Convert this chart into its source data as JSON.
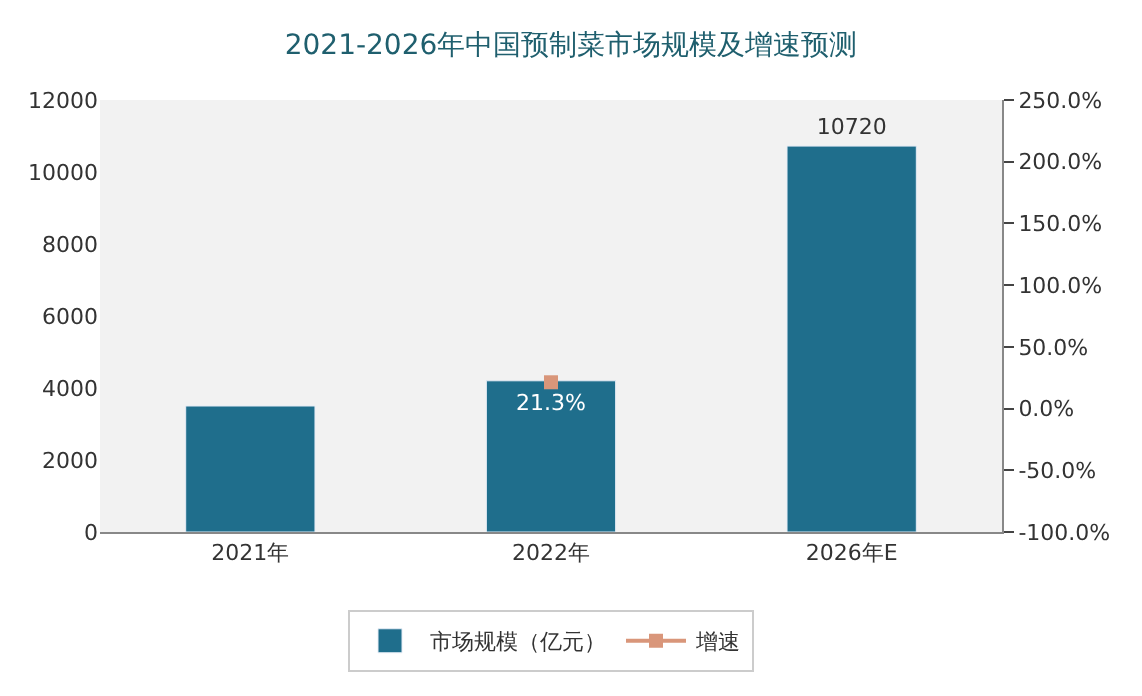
{
  "chart_data": {
    "type": "bar",
    "title": "2021-2026年中国预制菜市场规模及增速预测",
    "categories": [
      "2021年",
      "2022年",
      "2026年E"
    ],
    "series": [
      {
        "name": "市场规模（亿元）",
        "color": "#1f6e8c",
        "values": [
          3500,
          4200,
          10720
        ],
        "value_labels": [
          null,
          null,
          "10720"
        ]
      },
      {
        "name": "增速",
        "type": "line",
        "axis": "y2",
        "color": "#d9967a",
        "marker": "square",
        "values": [
          null,
          21.3,
          null
        ],
        "value_labels": [
          null,
          "21.3%",
          null
        ]
      }
    ],
    "ylim": [
      0,
      12000
    ],
    "yticks": [
      0,
      2000,
      4000,
      6000,
      8000,
      10000,
      12000
    ],
    "y2lim": [
      -100,
      250
    ],
    "y2ticks": [
      {
        "value": -100,
        "label": "-100.0%"
      },
      {
        "value": -50,
        "label": "-50.0%"
      },
      {
        "value": 0,
        "label": "0.0%"
      },
      {
        "value": 50,
        "label": "50.0%"
      },
      {
        "value": 100,
        "label": "100.0%"
      },
      {
        "value": 150,
        "label": "150.0%"
      },
      {
        "value": 200,
        "label": "200.0%"
      },
      {
        "value": 250,
        "label": "250.0%"
      }
    ],
    "legend": "bottom",
    "grid": false
  }
}
